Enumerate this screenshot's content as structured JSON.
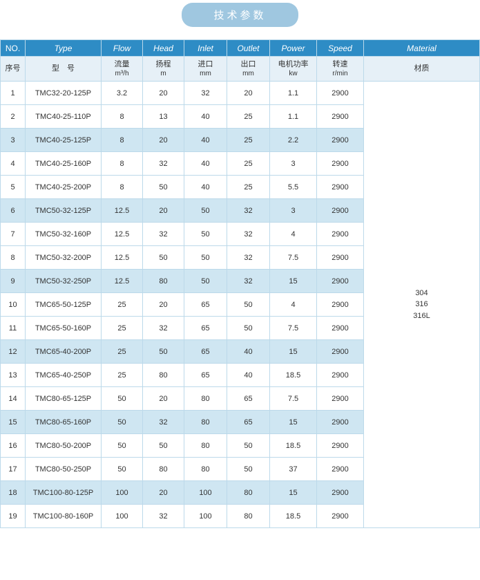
{
  "title": "技术参数",
  "header_en": {
    "no": "NO.",
    "type": "Type",
    "flow": "Flow",
    "head": "Head",
    "inlet": "Inlet",
    "outlet": "Outlet",
    "power": "Power",
    "speed": "Speed",
    "material": "Material"
  },
  "header_zh": {
    "no": "序号",
    "type": "型　号",
    "flow": "流量",
    "flow_unit": "m³/h",
    "head": "扬程",
    "head_unit": "m",
    "inlet": "进口",
    "inlet_unit": "mm",
    "outlet": "出口",
    "outlet_unit": "mm",
    "power": "电机功率",
    "power_unit": "kw",
    "speed": "转速",
    "speed_unit": "r/min",
    "material": "材质"
  },
  "material_lines": [
    "304",
    "316",
    "316L"
  ],
  "highlight_rows": [
    3,
    6,
    9,
    12,
    15,
    18
  ],
  "rows": [
    {
      "no": "1",
      "type": "TMC32-20-125P",
      "flow": "3.2",
      "head": "20",
      "inlet": "32",
      "outlet": "20",
      "power": "1.1",
      "speed": "2900"
    },
    {
      "no": "2",
      "type": "TMC40-25-110P",
      "flow": "8",
      "head": "13",
      "inlet": "40",
      "outlet": "25",
      "power": "1.1",
      "speed": "2900"
    },
    {
      "no": "3",
      "type": "TMC40-25-125P",
      "flow": "8",
      "head": "20",
      "inlet": "40",
      "outlet": "25",
      "power": "2.2",
      "speed": "2900"
    },
    {
      "no": "4",
      "type": "TMC40-25-160P",
      "flow": "8",
      "head": "32",
      "inlet": "40",
      "outlet": "25",
      "power": "3",
      "speed": "2900"
    },
    {
      "no": "5",
      "type": "TMC40-25-200P",
      "flow": "8",
      "head": "50",
      "inlet": "40",
      "outlet": "25",
      "power": "5.5",
      "speed": "2900"
    },
    {
      "no": "6",
      "type": "TMC50-32-125P",
      "flow": "12.5",
      "head": "20",
      "inlet": "50",
      "outlet": "32",
      "power": "3",
      "speed": "2900"
    },
    {
      "no": "7",
      "type": "TMC50-32-160P",
      "flow": "12.5",
      "head": "32",
      "inlet": "50",
      "outlet": "32",
      "power": "4",
      "speed": "2900"
    },
    {
      "no": "8",
      "type": "TMC50-32-200P",
      "flow": "12.5",
      "head": "50",
      "inlet": "50",
      "outlet": "32",
      "power": "7.5",
      "speed": "2900"
    },
    {
      "no": "9",
      "type": "TMC50-32-250P",
      "flow": "12.5",
      "head": "80",
      "inlet": "50",
      "outlet": "32",
      "power": "15",
      "speed": "2900"
    },
    {
      "no": "10",
      "type": "TMC65-50-125P",
      "flow": "25",
      "head": "20",
      "inlet": "65",
      "outlet": "50",
      "power": "4",
      "speed": "2900"
    },
    {
      "no": "11",
      "type": "TMC65-50-160P",
      "flow": "25",
      "head": "32",
      "inlet": "65",
      "outlet": "50",
      "power": "7.5",
      "speed": "2900"
    },
    {
      "no": "12",
      "type": "TMC65-40-200P",
      "flow": "25",
      "head": "50",
      "inlet": "65",
      "outlet": "40",
      "power": "15",
      "speed": "2900"
    },
    {
      "no": "13",
      "type": "TMC65-40-250P",
      "flow": "25",
      "head": "80",
      "inlet": "65",
      "outlet": "40",
      "power": "18.5",
      "speed": "2900"
    },
    {
      "no": "14",
      "type": "TMC80-65-125P",
      "flow": "50",
      "head": "20",
      "inlet": "80",
      "outlet": "65",
      "power": "7.5",
      "speed": "2900"
    },
    {
      "no": "15",
      "type": "TMC80-65-160P",
      "flow": "50",
      "head": "32",
      "inlet": "80",
      "outlet": "65",
      "power": "15",
      "speed": "2900"
    },
    {
      "no": "16",
      "type": "TMC80-50-200P",
      "flow": "50",
      "head": "50",
      "inlet": "80",
      "outlet": "50",
      "power": "18.5",
      "speed": "2900"
    },
    {
      "no": "17",
      "type": "TMC80-50-250P",
      "flow": "50",
      "head": "80",
      "inlet": "80",
      "outlet": "50",
      "power": "37",
      "speed": "2900"
    },
    {
      "no": "18",
      "type": "TMC100-80-125P",
      "flow": "100",
      "head": "20",
      "inlet": "100",
      "outlet": "80",
      "power": "15",
      "speed": "2900"
    },
    {
      "no": "19",
      "type": "TMC100-80-160P",
      "flow": "100",
      "head": "32",
      "inlet": "100",
      "outlet": "80",
      "power": "18.5",
      "speed": "2900"
    }
  ],
  "colors": {
    "header_bg": "#2e8cc5",
    "subheader_bg": "#e6f0f7",
    "highlight_bg": "#cfe6f2",
    "border": "#bcd9ea",
    "title_bg": "#9fc7e0"
  }
}
